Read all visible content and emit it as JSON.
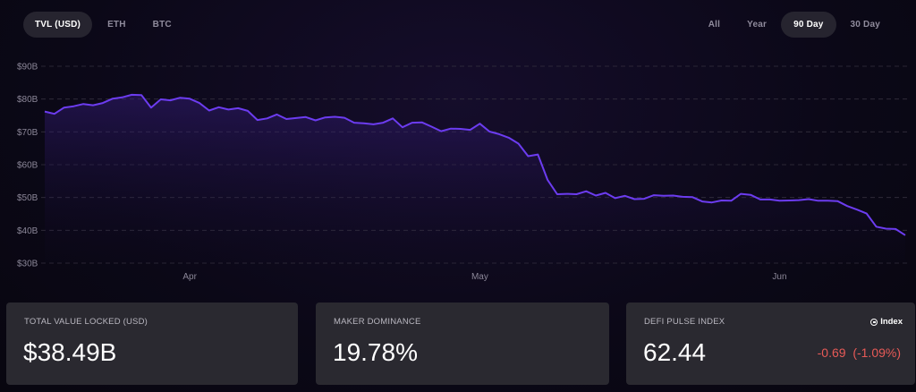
{
  "tabs_left": [
    {
      "label": "TVL (USD)",
      "active": true
    },
    {
      "label": "ETH",
      "active": false
    },
    {
      "label": "BTC",
      "active": false
    }
  ],
  "tabs_right": [
    {
      "label": "All",
      "active": false
    },
    {
      "label": "Year",
      "active": false
    },
    {
      "label": "90 Day",
      "active": true
    },
    {
      "label": "30 Day",
      "active": false
    }
  ],
  "chart_data": {
    "type": "area",
    "yticks": [
      "$90B",
      "$80B",
      "$70B",
      "$60B",
      "$50B",
      "$40B",
      "$30B"
    ],
    "ylim": [
      30,
      90
    ],
    "xticks": [
      {
        "label": "Apr",
        "day": 15
      },
      {
        "label": "May",
        "day": 45
      },
      {
        "label": "Jun",
        "day": 76
      }
    ],
    "xlim": [
      0,
      89
    ],
    "line_color": "#6c3cf0",
    "series": [
      {
        "values": [
          76.2,
          75.5,
          77.4,
          77.8,
          78.5,
          78.1,
          78.8,
          80.1,
          80.5,
          81.3,
          81.2,
          77.4,
          79.9,
          79.6,
          80.4,
          80.1,
          78.8,
          76.5,
          77.5,
          76.8,
          77.2,
          76.4,
          73.6,
          74.1,
          75.3,
          73.9,
          74.2,
          74.5,
          73.5,
          74.4,
          74.6,
          74.3,
          72.8,
          72.6,
          72.3,
          72.8,
          74.1,
          71.4,
          72.8,
          72.9,
          71.6,
          70.2,
          71.0,
          70.9,
          70.6,
          72.5,
          70.1,
          69.3,
          68.2,
          66.4,
          62.6,
          63.1,
          55.4,
          51.0,
          51.1,
          51.0,
          51.9,
          50.6,
          51.4,
          49.8,
          50.5,
          49.5,
          49.6,
          50.7,
          50.5,
          50.6,
          50.2,
          50.1,
          48.8,
          48.5,
          49.1,
          49.0,
          51.1,
          50.8,
          49.4,
          49.4,
          49.0,
          49.1,
          49.2,
          49.5,
          49.0,
          49.0,
          48.9,
          47.4,
          46.3,
          45.1,
          41.1,
          40.5,
          40.4,
          38.5
        ]
      }
    ]
  },
  "cards": [
    {
      "label": "TOTAL VALUE LOCKED (USD)",
      "value": "$38.49B"
    },
    {
      "label": "MAKER DOMINANCE",
      "value": "19.78%"
    },
    {
      "label": "DEFI PULSE INDEX",
      "value": "62.44",
      "badge": "Index",
      "badge_icon": "index-icon",
      "change": "-0.69  (-1.09%)",
      "change_color": "#e85a57"
    }
  ]
}
